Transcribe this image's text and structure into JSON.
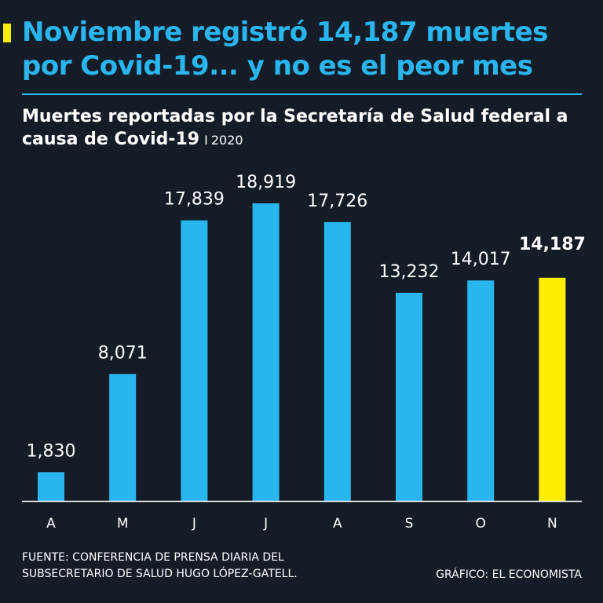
{
  "headline": "Noviembre registró 14,187 muertes por Covid-19... y no es el peor mes",
  "subtitle": {
    "text": "Muertes reportadas por la Secretaría de Salud federal a causa de Covid-19",
    "separator": "I",
    "year": "2020"
  },
  "colors": {
    "background": "#141c28",
    "accent_blue": "#29b6ee",
    "highlight_yellow": "#ffee00"
  },
  "chart_data": {
    "type": "bar",
    "title": "Muertes reportadas por la Secretaría de Salud federal a causa de Covid-19",
    "categories": [
      "A",
      "M",
      "J",
      "J",
      "A",
      "S",
      "O",
      "N"
    ],
    "values": [
      1830,
      8071,
      17839,
      18919,
      17726,
      13232,
      14017,
      14187
    ],
    "value_labels": [
      "1,830",
      "8,071",
      "17,839",
      "18,919",
      "17,726",
      "13,232",
      "14,017",
      "14,187"
    ],
    "highlight_index": 7,
    "xlabel": "",
    "ylabel": "",
    "ylim": [
      0,
      18919
    ],
    "grid": false
  },
  "footer": {
    "source_line1": "FUENTE: CONFERENCIA DE PRENSA DIARIA DEL",
    "source_line2": "SUBSECRETARIO DE SALUD HUGO LÓPEZ-GATELL.",
    "credit": "GRÁFICO: EL ECONOMISTA"
  }
}
